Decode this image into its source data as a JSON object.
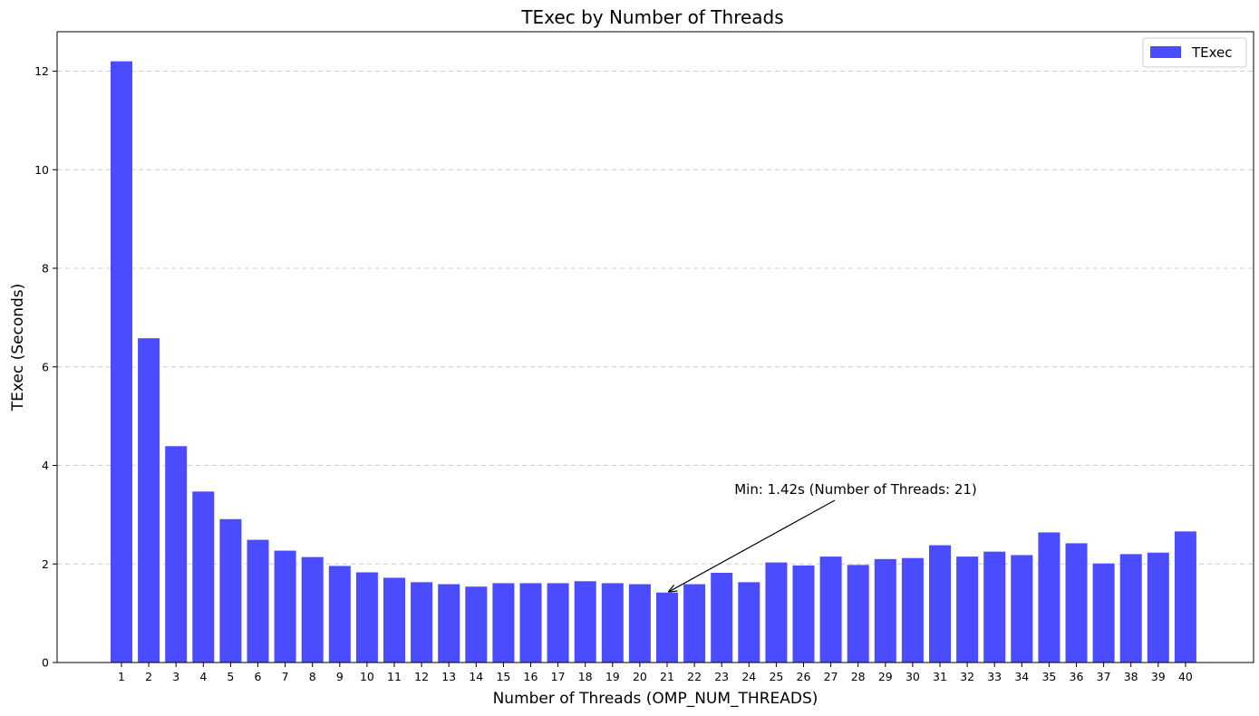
{
  "chart_data": {
    "type": "bar",
    "title": "TExec by Number of Threads",
    "xlabel": "Number of Threads (OMP_NUM_THREADS)",
    "ylabel": "TExec (Seconds)",
    "categories": [
      "1",
      "2",
      "3",
      "4",
      "5",
      "6",
      "7",
      "8",
      "9",
      "10",
      "11",
      "12",
      "13",
      "14",
      "15",
      "16",
      "17",
      "18",
      "19",
      "20",
      "21",
      "22",
      "23",
      "24",
      "25",
      "26",
      "27",
      "28",
      "29",
      "30",
      "31",
      "32",
      "33",
      "34",
      "35",
      "36",
      "37",
      "38",
      "39",
      "40"
    ],
    "series": [
      {
        "name": "TExec",
        "color": "#4b4bff",
        "values": [
          12.2,
          6.58,
          4.39,
          3.47,
          2.91,
          2.49,
          2.27,
          2.14,
          1.96,
          1.83,
          1.72,
          1.63,
          1.59,
          1.54,
          1.61,
          1.61,
          1.61,
          1.65,
          1.61,
          1.59,
          1.42,
          1.59,
          1.82,
          1.63,
          2.03,
          1.97,
          2.15,
          1.98,
          2.1,
          2.12,
          2.38,
          2.15,
          2.25,
          2.18,
          2.64,
          2.42,
          2.01,
          2.2,
          2.23,
          2.66
        ]
      }
    ],
    "ylim": [
      0,
      12.8
    ],
    "yticks": [
      0,
      2,
      4,
      6,
      8,
      10,
      12
    ],
    "grid": "y-dashed",
    "legend": "top-right",
    "annotation": {
      "text": "Min: 1.42s (Number of Threads: 21)",
      "category": "21",
      "value": 1.42
    }
  }
}
